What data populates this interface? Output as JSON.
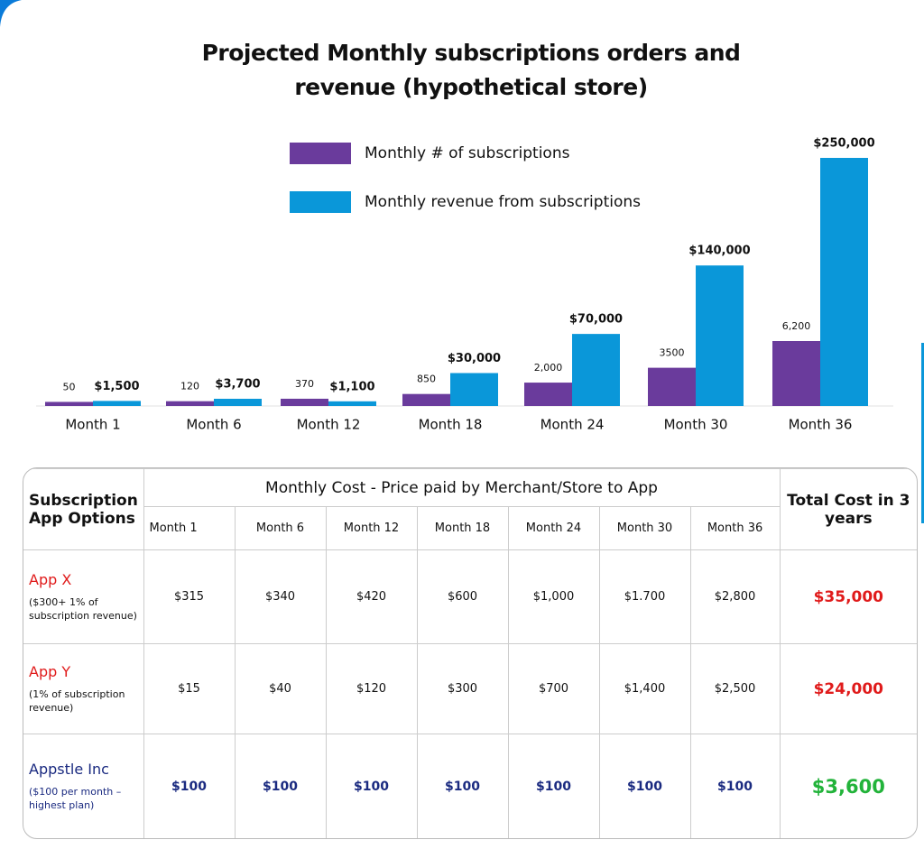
{
  "chart_data": {
    "type": "bar",
    "title": "Projected Monthly subscriptions orders and revenue (hypothetical store)",
    "categories": [
      "Month 1",
      "Month 6",
      "Month 12",
      "Month 18",
      "Month 24",
      "Month 30",
      "Month 36"
    ],
    "series": [
      {
        "name": "Monthly # of subscriptions",
        "color": "#6a3b9c",
        "values": [
          50,
          120,
          370,
          850,
          2000,
          3500,
          6200
        ],
        "value_labels": [
          "50",
          "120",
          "370",
          "850",
          "2,000",
          "3500",
          "6,200"
        ]
      },
      {
        "name": "Monthly revenue from subscriptions",
        "color": "#0a97d9",
        "values": [
          1500,
          3700,
          1100,
          30000,
          70000,
          140000,
          250000
        ],
        "value_labels": [
          "$1,500",
          "$3,700",
          "$1,100",
          "$30,000",
          "$70,000",
          "$140,000",
          "$250,000"
        ]
      }
    ]
  },
  "table": {
    "row_header": "Subscription App Options",
    "group_header": "Monthly Cost - Price paid by Merchant/Store to App",
    "months": [
      "Month 1",
      "Month 6",
      "Month 12",
      "Month 18",
      "Month 24",
      "Month 30",
      "Month 36"
    ],
    "total_header": "Total Cost in 3 years",
    "rows": [
      {
        "name": "App X",
        "note": "($300+ 1% of subscription revenue)",
        "costs": [
          "$315",
          "$340",
          "$420",
          "$600",
          "$1,000",
          "$1.700",
          "$2,800"
        ],
        "total": "$35,000"
      },
      {
        "name": "App Y",
        "note": "(1% of subscription revenue)",
        "costs": [
          "$15",
          "$40",
          "$120",
          "$300",
          "$700",
          "$1,400",
          "$2,500"
        ],
        "total": "$24,000"
      },
      {
        "name": "Appstle Inc",
        "note": "($100 per month – highest plan)",
        "costs": [
          "$100",
          "$100",
          "$100",
          "$100",
          "$100",
          "$100",
          "$100"
        ],
        "total": "$3,600"
      }
    ]
  }
}
